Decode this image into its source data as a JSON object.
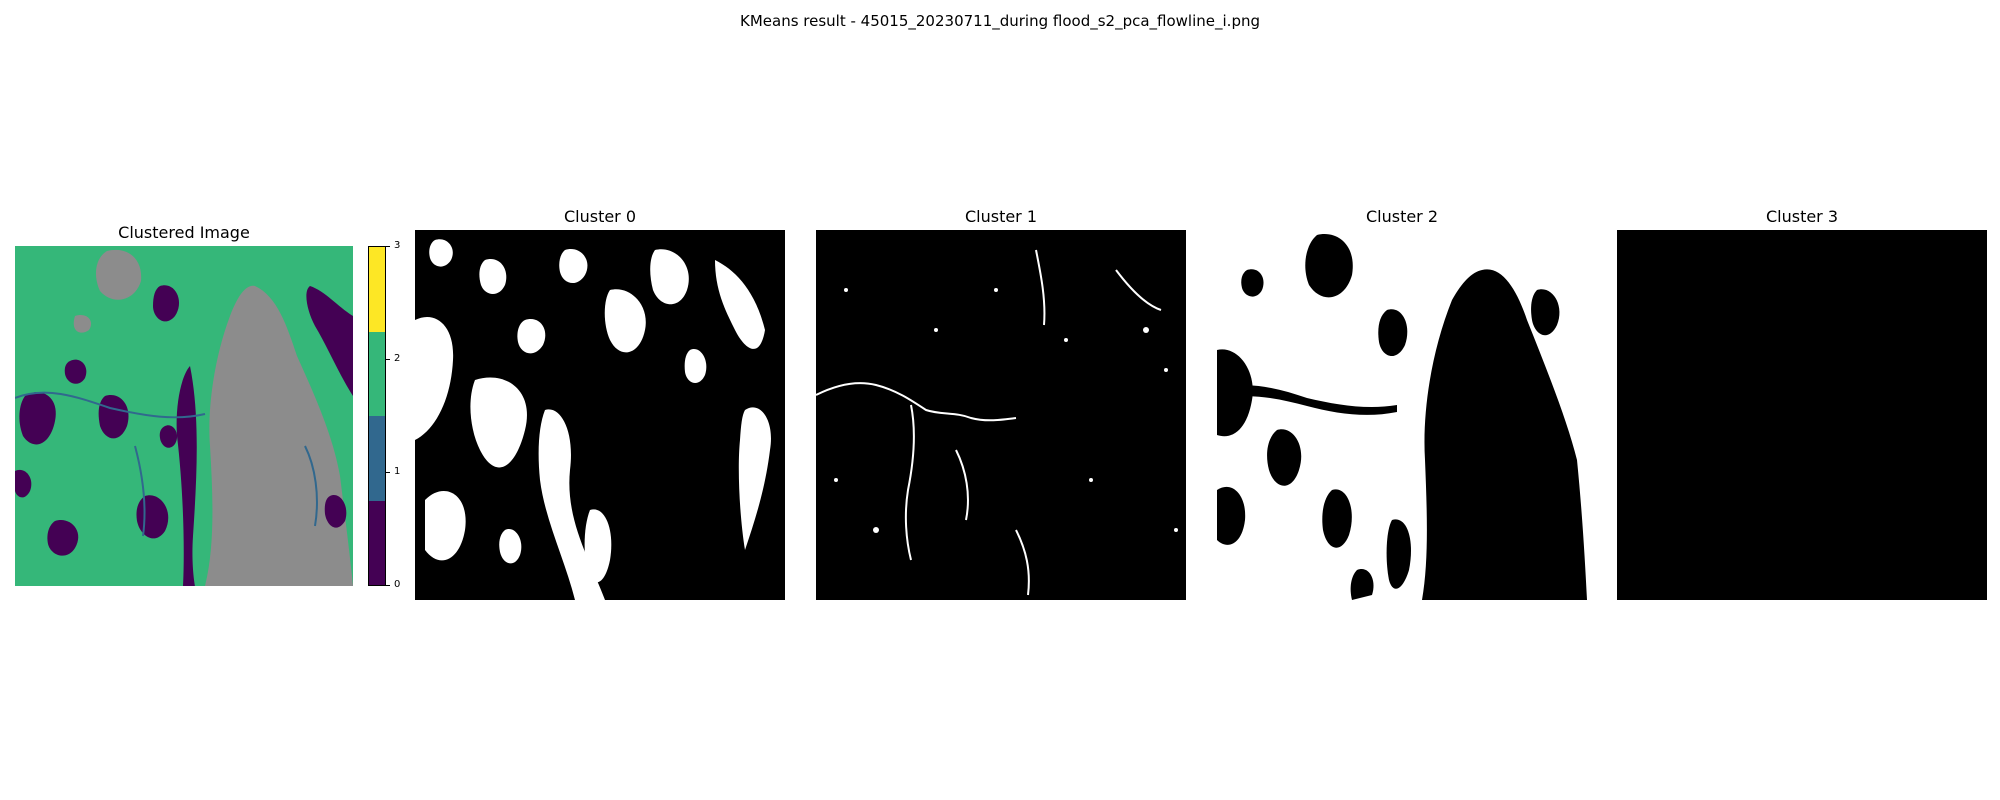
{
  "figure": {
    "title": "KMeans result - 45015_20230711_during flood_s2_pca_flowline_i.png"
  },
  "clustered_panel": {
    "title": "Clustered Image",
    "colorbar": {
      "ticks": [
        "0",
        "1",
        "2",
        "3"
      ],
      "colors": [
        "#440154",
        "#31688e",
        "#35b779",
        "#fde725"
      ]
    },
    "region_colors": {
      "cluster_0": "#440154",
      "cluster_1": "#31688e",
      "cluster_2": "#35b779",
      "masked": "#8c8c8c"
    }
  },
  "cluster_panels": [
    {
      "title": "Cluster 0"
    },
    {
      "title": "Cluster 1"
    },
    {
      "title": "Cluster 2"
    },
    {
      "title": "Cluster 3"
    }
  ],
  "mask_colors": {
    "foreground": "#ffffff",
    "background": "#000000"
  }
}
